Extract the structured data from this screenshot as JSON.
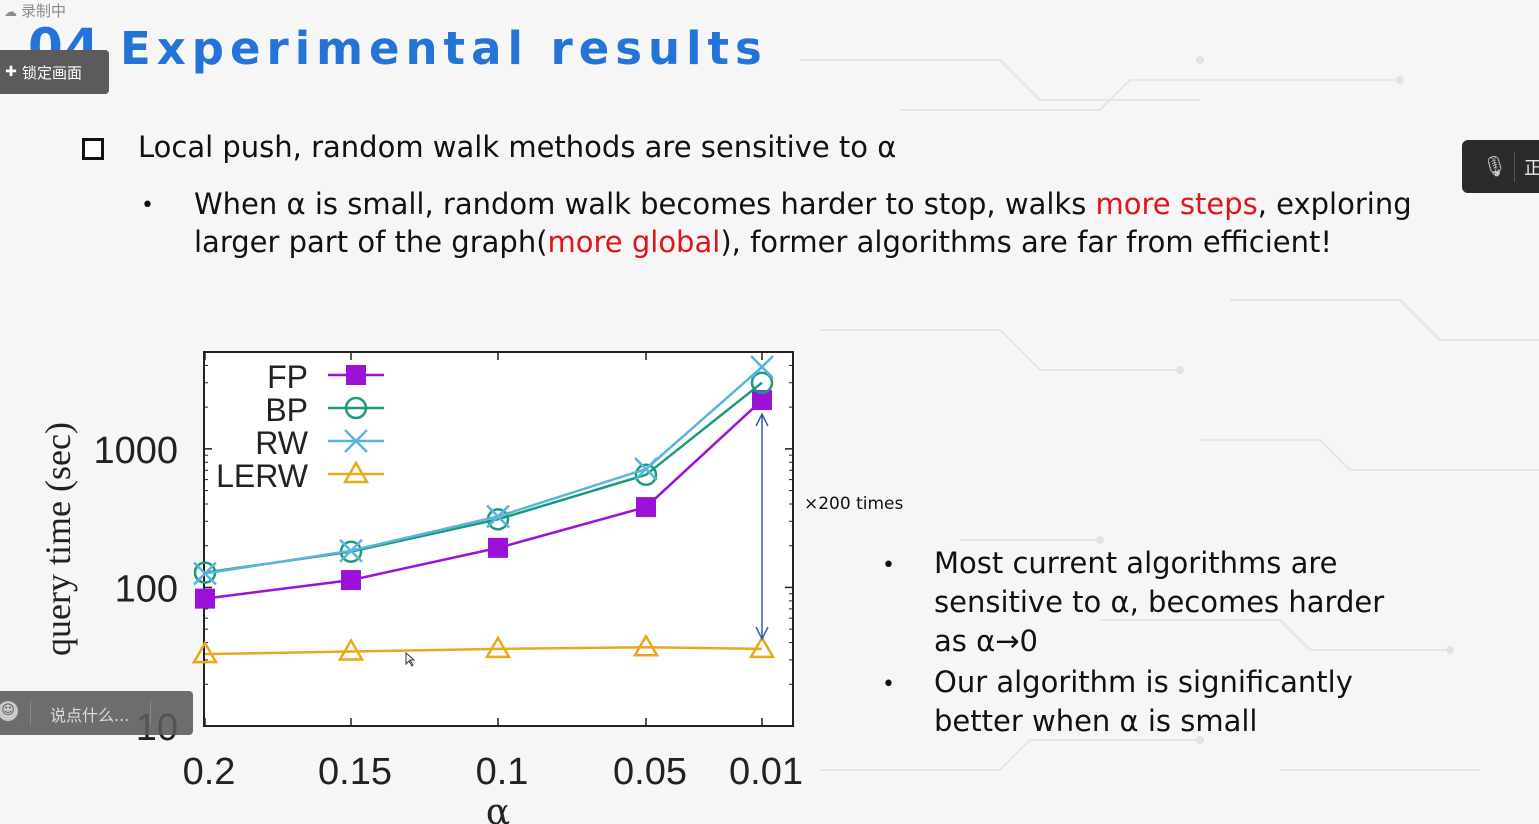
{
  "recording": {
    "label": "录制中",
    "icon": "cloud-icon"
  },
  "title": {
    "number": "04",
    "text": "Experimental results"
  },
  "lock_button": {
    "label": "锁定画面",
    "icon": "pin-icon"
  },
  "bullet1": "Local push, random walk methods are sensitive to α",
  "bullet2": {
    "dot": "•",
    "line1_a": "When α is small, random walk becomes harder to stop, walks ",
    "line1_red": "more steps",
    "line1_b": ", exploring",
    "line2_a": "larger part of the graph(",
    "line2_red": "more global",
    "line2_b": "), former algorithms are far from efficient!"
  },
  "right_bullets": [
    {
      "dot": "•",
      "line1": "Most current algorithms are",
      "line2": "sensitive to α, becomes harder",
      "line3": "as α→0"
    },
    {
      "dot": "•",
      "line1": "Our algorithm is significantly",
      "line2": "better when α is small"
    }
  ],
  "annotation": "×200 times",
  "mic_panel": {
    "icon": "muted-mic-icon",
    "text": "正"
  },
  "chat_bar": {
    "placeholder": "说点什么...",
    "icon": "smile-icon"
  },
  "colors": {
    "title": "#2474d8",
    "highlight": "#e0141b",
    "FP": "#9b12d6",
    "BP": "#1a9a7c",
    "RW": "#5ab4dc",
    "LERW": "#e8a81c",
    "arrow": "#3c59a8"
  },
  "chart_data": {
    "type": "line",
    "xlabel": "α",
    "ylabel": "query time (sec)",
    "categories": [
      "0.2",
      "0.15",
      "0.1",
      "0.05",
      "0.01"
    ],
    "yscale": "log",
    "ylim": [
      10,
      5000
    ],
    "yticks": [
      "10",
      "100",
      "1000"
    ],
    "legend_position": "top-left",
    "series": [
      {
        "name": "FP",
        "marker": "filled-square",
        "color": "#9b12d6",
        "values": [
          83,
          113,
          193,
          380,
          2250
        ]
      },
      {
        "name": "BP",
        "marker": "open-circle",
        "color": "#1a9a7c",
        "values": [
          128,
          181,
          310,
          650,
          3000
        ]
      },
      {
        "name": "RW",
        "marker": "cross",
        "color": "#5ab4dc",
        "values": [
          126,
          184,
          325,
          715,
          3900
        ]
      },
      {
        "name": "LERW",
        "marker": "open-triangle",
        "color": "#e8a81c",
        "values": [
          33,
          34.5,
          36,
          37,
          36
        ]
      }
    ]
  }
}
